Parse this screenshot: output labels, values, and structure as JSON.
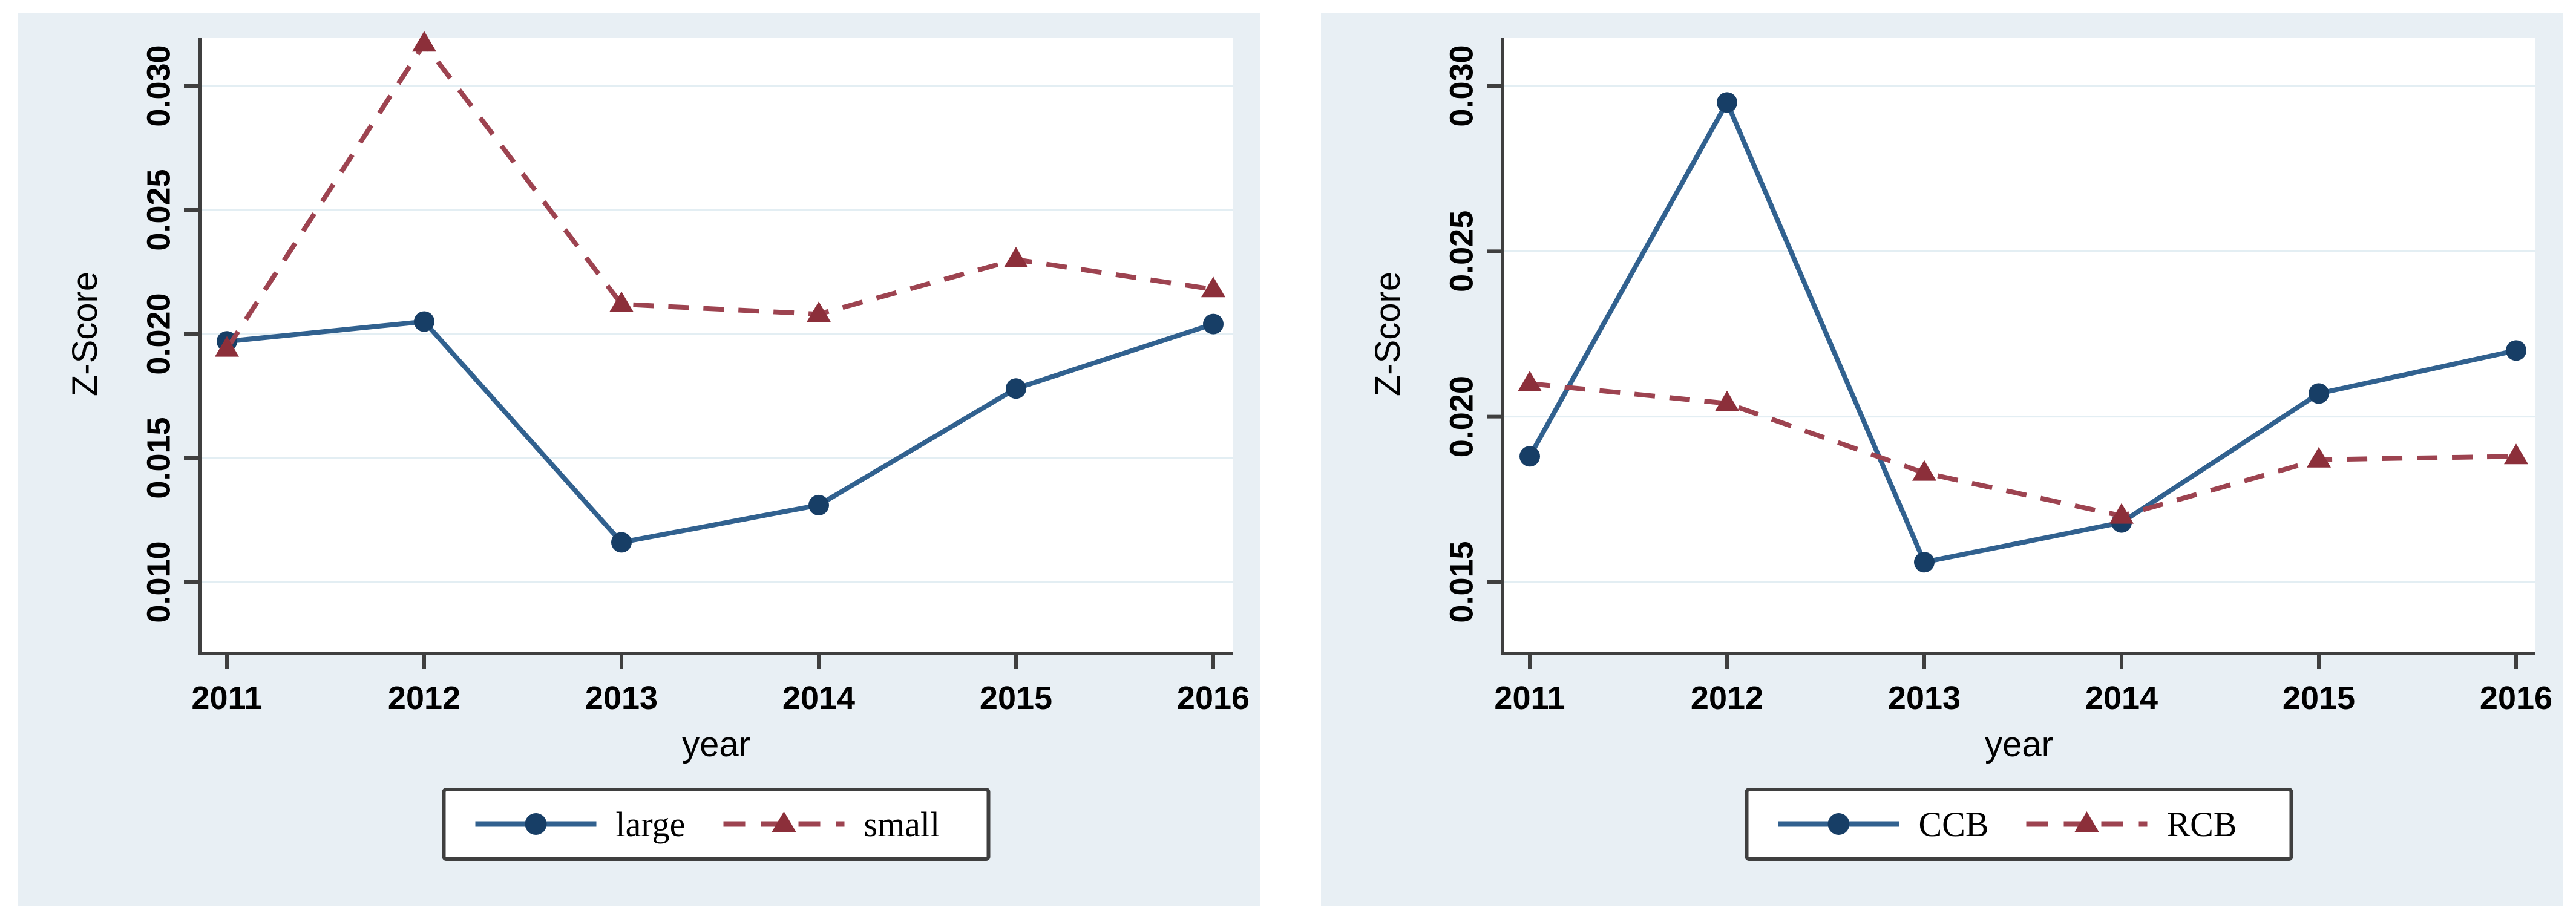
{
  "figure": {
    "background": "#ffffff",
    "panel_background": "#e8eff4",
    "plot_background": "#ffffff",
    "gridline_color": "#e3eef3",
    "axis_color": "#3f3f3f",
    "text_color": "#000000"
  },
  "chart_data": [
    {
      "type": "line",
      "title": "",
      "xlabel": "year",
      "ylabel": "Z-Score",
      "grid": true,
      "legend_position": "bottom-center",
      "x": [
        2011,
        2012,
        2013,
        2014,
        2015,
        2016
      ],
      "x_tick_labels": [
        "2011",
        "2012",
        "2013",
        "2014",
        "2015",
        "2016"
      ],
      "y_ticks": [
        0.01,
        0.015,
        0.02,
        0.025,
        0.03
      ],
      "y_tick_labels": [
        "0.010",
        "0.015",
        "0.020",
        "0.025",
        "0.030"
      ],
      "ylim": [
        0.0071,
        0.032
      ],
      "series": [
        {
          "name": "large",
          "values": [
            0.0197,
            0.0205,
            0.0116,
            0.0131,
            0.0178,
            0.0204
          ],
          "line_color": "#31618f",
          "marker_color": "#173e66",
          "marker": "circle",
          "dash": "solid"
        },
        {
          "name": "small",
          "values": [
            0.0194,
            0.0317,
            0.0212,
            0.0208,
            0.023,
            0.0218
          ],
          "line_color": "#9d4350",
          "marker_color": "#8c2f3a",
          "marker": "triangle",
          "dash": "dashed"
        }
      ]
    },
    {
      "type": "line",
      "title": "",
      "xlabel": "year",
      "ylabel": "Z-Score",
      "grid": true,
      "legend_position": "bottom-center",
      "x": [
        2011,
        2012,
        2013,
        2014,
        2015,
        2016
      ],
      "x_tick_labels": [
        "2011",
        "2012",
        "2013",
        "2014",
        "2015",
        "2016"
      ],
      "y_ticks": [
        0.015,
        0.02,
        0.025,
        0.03
      ],
      "y_tick_labels": [
        "0.015",
        "0.020",
        "0.025",
        "0.030"
      ],
      "ylim": [
        0.0128,
        0.0315
      ],
      "series": [
        {
          "name": "CCB",
          "values": [
            0.0188,
            0.0295,
            0.0156,
            0.0168,
            0.0207,
            0.022
          ],
          "line_color": "#31618f",
          "marker_color": "#173e66",
          "marker": "circle",
          "dash": "solid"
        },
        {
          "name": "RCB",
          "values": [
            0.021,
            0.0204,
            0.0183,
            0.017,
            0.0187,
            0.0188
          ],
          "line_color": "#9d4350",
          "marker_color": "#8c2f3a",
          "marker": "triangle",
          "dash": "dashed"
        }
      ]
    }
  ]
}
